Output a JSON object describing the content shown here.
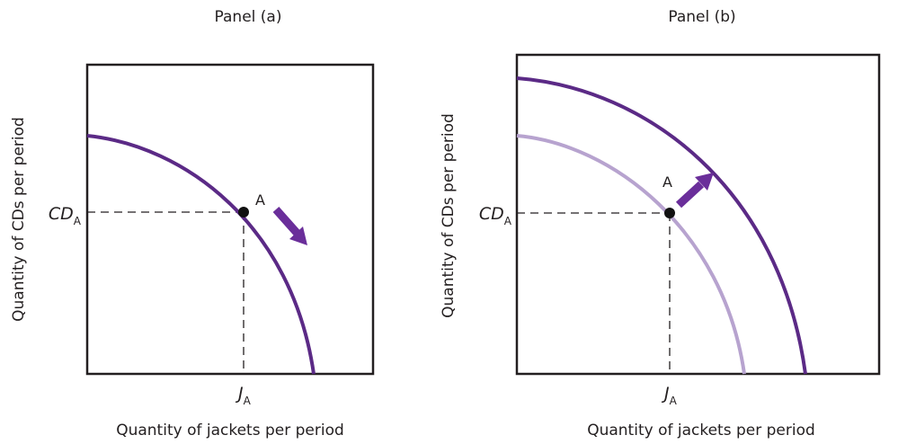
{
  "panels": [
    {
      "title": "Panel (a)",
      "ylabel": "Quantity of CDs per period",
      "xlabel": "Quantity of jackets per period",
      "point_label": "A",
      "y_tick": {
        "main": "CD",
        "sub": "A"
      },
      "x_tick": {
        "main": "J",
        "sub": "A"
      },
      "curves": [
        "dark"
      ],
      "arrow": "along-curve-down"
    },
    {
      "title": "Panel (b)",
      "ylabel": "Quantity of CDs per period",
      "xlabel": "Quantity of jackets per period",
      "point_label": "A",
      "y_tick": {
        "main": "CD",
        "sub": "A"
      },
      "x_tick": {
        "main": "J",
        "sub": "A"
      },
      "curves": [
        "light",
        "dark"
      ],
      "arrow": "outward"
    }
  ],
  "colors": {
    "curve_dark": "#5b2a86",
    "curve_light": "#b7a3cf",
    "arrow": "#6a2e9a",
    "axis": "#231f20"
  }
}
